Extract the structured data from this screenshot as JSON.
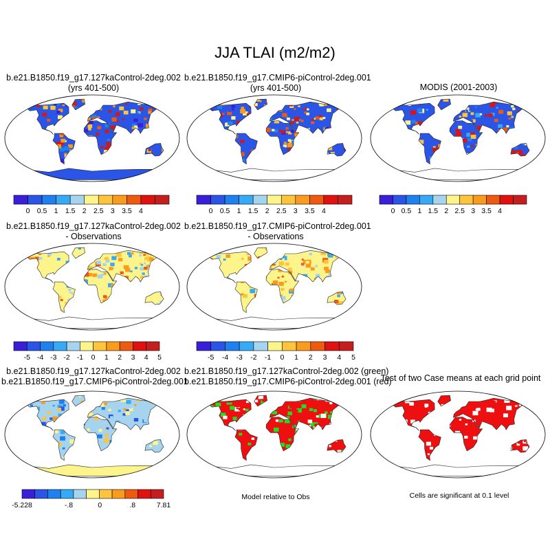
{
  "title": "JJA TLAI (m2/m2)",
  "panels": {
    "p1": {
      "line1": "b.e21.B1850.f19_g17.127kaControl-2deg.002",
      "line2": "(yrs 401-500)"
    },
    "p2": {
      "line1": "b.e21.B1850.f19_g17.CMIP6-piControl-2deg.001",
      "line2": "(yrs 401-500)"
    },
    "p3": {
      "line1": "MODIS (2001-2003)"
    },
    "p4": {
      "line1": "b.e21.B1850.f19_g17.127kaControl-2deg.002",
      "line2": "- Observations"
    },
    "p5": {
      "line1": "b.e21.B1850.f19_g17.CMIP6-piControl-2deg.001",
      "line2": "- Observations"
    },
    "p7": {
      "line1": "b.e21.B1850.f19_g17.127kaControl-2deg.002",
      "line2": "b.e21.B1850.f19_g17.CMIP6-piControl-2deg.001"
    },
    "p8": {
      "line1": "b.e21.B1850.f19_g17.127kaControl-2deg.002 (green)",
      "line2": "b.e21.B1850.f19_g17.CMIP6-piControl-2deg.001 (red)",
      "note": "Model relative to Obs"
    },
    "p9": {
      "line1": "Test of two Case means at each grid point",
      "note": "Cells are significant at 0.1 level"
    }
  },
  "colorbars": {
    "absolute": {
      "colors": [
        "#3a1fd8",
        "#2a55e6",
        "#1f80f0",
        "#37aaf5",
        "#a6d3ee",
        "#fdf58c",
        "#fdc43c",
        "#f99b1c",
        "#ee5a10",
        "#e0120f",
        "#c41e1e"
      ],
      "labels": [
        "0",
        "0.5",
        "1",
        "1.5",
        "2",
        "2.5",
        "3",
        "3.5",
        "4"
      ]
    },
    "difference": {
      "colors": [
        "#3a1fd8",
        "#2a55e6",
        "#1f80f0",
        "#37aaf5",
        "#a6d3ee",
        "#fdf58c",
        "#fdc43c",
        "#f99b1c",
        "#ee5a10",
        "#e0120f",
        "#c41e1e"
      ],
      "labels": [
        "-5",
        "-4",
        "-3",
        "-2",
        "-1",
        "0",
        "1",
        "2",
        "3",
        "4",
        "5"
      ]
    },
    "case_diff": {
      "colors": [
        "#3a1fd8",
        "#2a55e6",
        "#1f80f0",
        "#37aaf5",
        "#a6d3ee",
        "#fdf58c",
        "#fdc43c",
        "#f99b1c",
        "#ee5a10",
        "#e0120f",
        "#c41e1e"
      ],
      "labels": [
        "-5.228",
        "-.8",
        "0",
        ".8",
        "7.81"
      ]
    }
  }
}
